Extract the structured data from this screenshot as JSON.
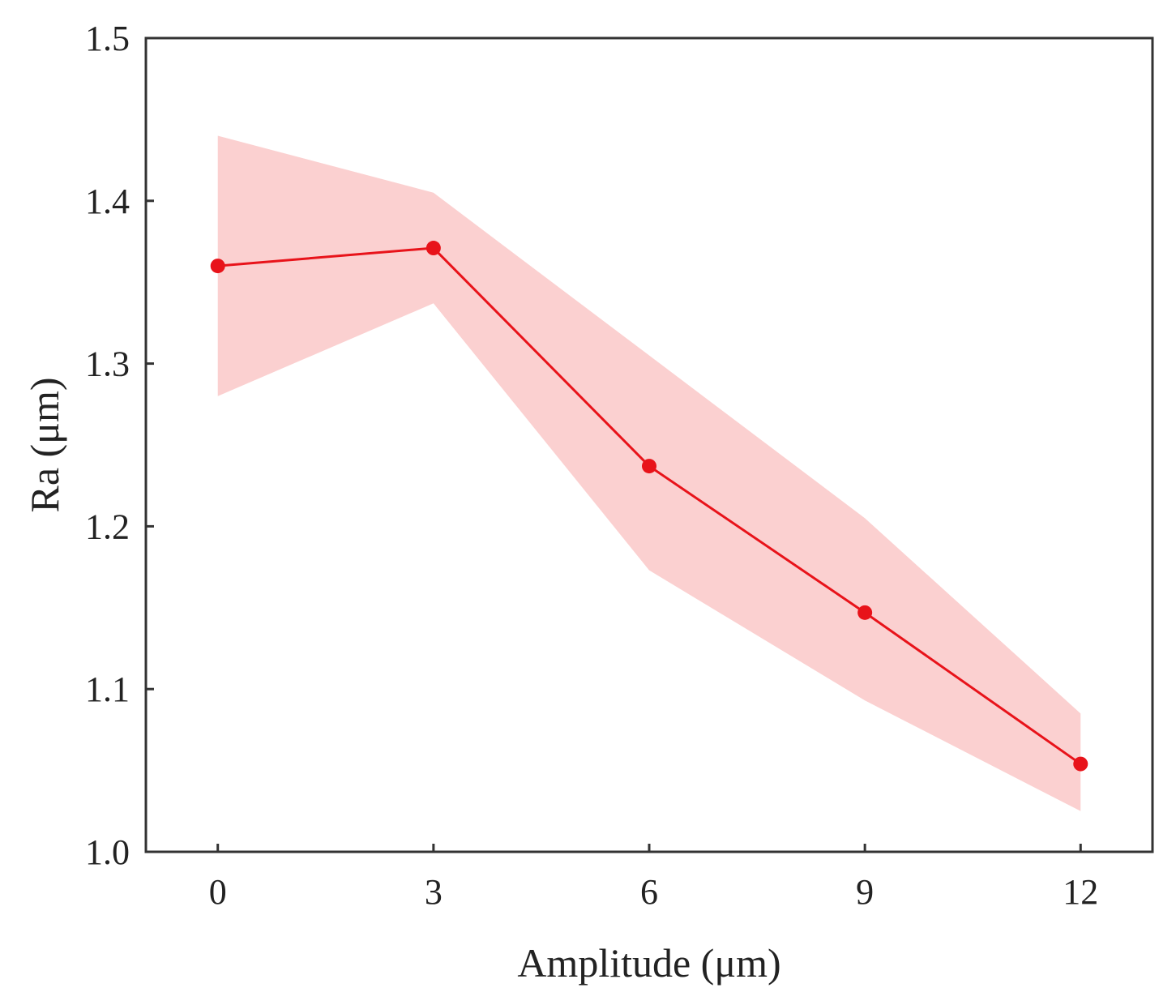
{
  "chart_data": {
    "type": "line",
    "title": "",
    "xlabel": "Amplitude (μm)",
    "ylabel": "Ra (μm)",
    "xlim": [
      -1,
      13
    ],
    "ylim": [
      1.0,
      1.5
    ],
    "xticks": [
      0,
      3,
      6,
      9,
      12
    ],
    "xtick_labels": [
      "0",
      "3",
      "6",
      "9",
      "12"
    ],
    "yticks": [
      1.0,
      1.1,
      1.2,
      1.3,
      1.4,
      1.5
    ],
    "ytick_labels": [
      "1.0",
      "1.1",
      "1.2",
      "1.3",
      "1.4",
      "1.5"
    ],
    "grid": false,
    "series": [
      {
        "name": "Ra",
        "x": [
          0,
          3,
          6,
          9,
          12
        ],
        "values": [
          1.36,
          1.371,
          1.237,
          1.147,
          1.054
        ],
        "upper": [
          1.44,
          1.405,
          1.305,
          1.205,
          1.085
        ],
        "lower": [
          1.28,
          1.337,
          1.173,
          1.093,
          1.025
        ],
        "color": "#e8131a",
        "band_color": "#fbd0d0"
      }
    ]
  }
}
